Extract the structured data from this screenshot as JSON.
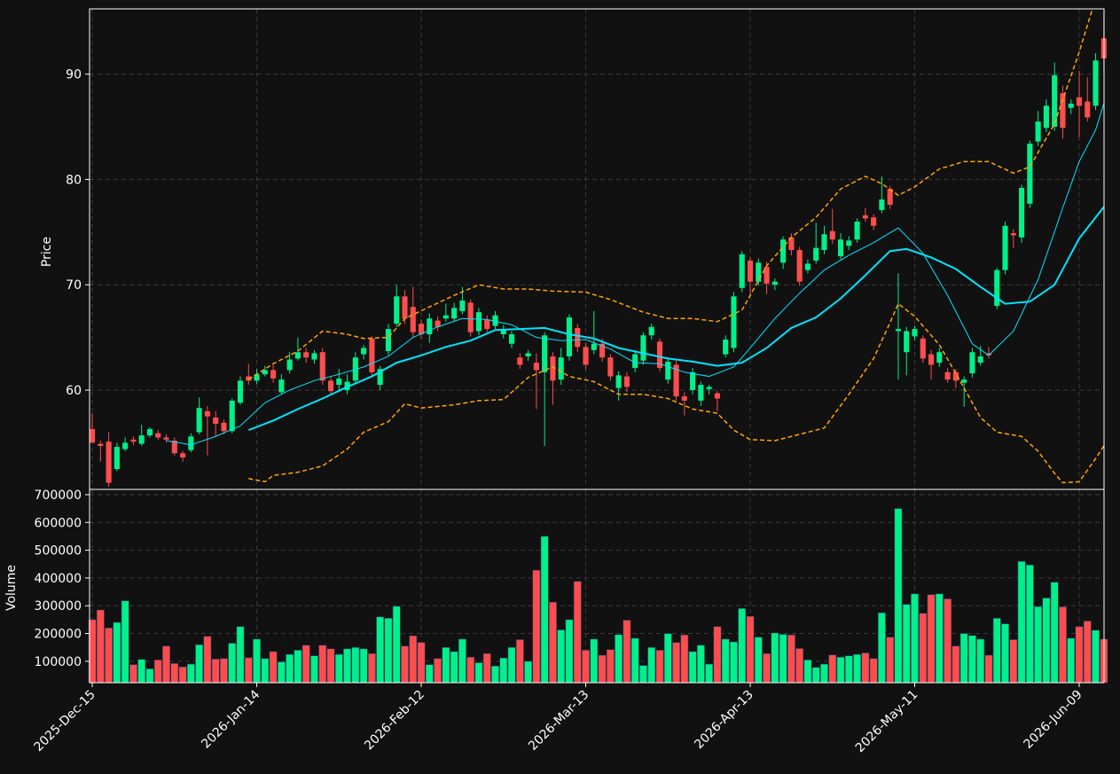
{
  "chart_data": {
    "type": "candlestick",
    "categories": [
      "2025-Dec-15",
      null,
      null,
      null,
      null,
      null,
      null,
      null,
      null,
      null,
      null,
      null,
      null,
      null,
      null,
      null,
      null,
      null,
      null,
      null,
      "2026-Jan-14",
      null,
      null,
      null,
      null,
      null,
      null,
      null,
      null,
      null,
      null,
      null,
      null,
      null,
      null,
      null,
      null,
      null,
      null,
      null,
      "2026-Feb-12",
      null,
      null,
      null,
      null,
      null,
      null,
      null,
      null,
      null,
      null,
      null,
      null,
      null,
      null,
      null,
      null,
      null,
      null,
      null,
      "2026-Mar-13",
      null,
      null,
      null,
      null,
      null,
      null,
      null,
      null,
      null,
      null,
      null,
      null,
      null,
      null,
      null,
      null,
      null,
      null,
      null,
      "2026-Apr-13",
      null,
      null,
      null,
      null,
      null,
      null,
      null,
      null,
      null,
      null,
      null,
      null,
      null,
      null,
      null,
      null,
      null,
      null,
      null,
      "2026-May-11",
      null,
      null,
      null,
      null,
      null,
      null,
      null,
      null,
      null,
      null,
      null,
      null,
      null,
      null,
      null,
      null,
      null,
      null,
      null,
      "2026-Jun-09",
      null,
      null,
      null
    ],
    "open": [
      56.3,
      54.9,
      55.1,
      52.5,
      54.4,
      55.3,
      54.9,
      55.7,
      55.9,
      55.5,
      55.2,
      54.0,
      54.3,
      56.0,
      58.0,
      57.4,
      56.9,
      56.1,
      58.8,
      61.3,
      60.9,
      61.5,
      61.9,
      59.8,
      61.9,
      63.0,
      63.6,
      62.9,
      63.6,
      60.9,
      60.5,
      60.0,
      60.9,
      63.4,
      64.9,
      60.5,
      63.7,
      66.3,
      68.9,
      67.9,
      66.3,
      65.3,
      66.6,
      66.8,
      66.8,
      67.5,
      68.3,
      65.6,
      66.7,
      66.1,
      65.3,
      64.4,
      63.1,
      63.2,
      62.6,
      61.7,
      63.2,
      61.0,
      63.2,
      65.9,
      64.1,
      63.8,
      64.4,
      63.1,
      60.2,
      61.3,
      62.1,
      62.8,
      65.2,
      64.6,
      61.0,
      62.4,
      59.4,
      60.0,
      59.0,
      60.1,
      59.7,
      63.4,
      64.0,
      69.7,
      72.3,
      70.3,
      71.7,
      70.0,
      72.1,
      74.5,
      73.3,
      71.4,
      72.3,
      73.3,
      75.1,
      72.7,
      73.7,
      74.3,
      76.6,
      76.4,
      77.1,
      79.1,
      65.6,
      63.6,
      65.1,
      64.9,
      63.4,
      62.6,
      61.7,
      61.7,
      60.7,
      61.6,
      62.6,
      63.5,
      68.0,
      71.4,
      74.9,
      74.5,
      77.7,
      83.6,
      84.9,
      85.0,
      88.2,
      86.8,
      87.8,
      87.4,
      87.0,
      93.4
    ],
    "high": [
      57.8,
      55.2,
      56.0,
      55.0,
      55.5,
      55.6,
      56.7,
      56.5,
      56.2,
      55.8,
      55.5,
      54.2,
      55.9,
      59.3,
      58.5,
      58.0,
      57.2,
      59.2,
      61.3,
      62.5,
      62.0,
      62.3,
      62.4,
      61.5,
      63.6,
      65.0,
      64.0,
      63.8,
      64.0,
      61.3,
      62.0,
      61.5,
      63.6,
      64.3,
      65.1,
      62.3,
      66.3,
      70.0,
      69.5,
      69.8,
      66.7,
      67.3,
      67.0,
      68.2,
      68.3,
      69.8,
      68.6,
      67.8,
      67.1,
      67.5,
      66.2,
      65.6,
      63.5,
      63.8,
      63.5,
      65.5,
      63.6,
      64.0,
      67.2,
      66.3,
      64.5,
      67.5,
      64.9,
      63.4,
      61.8,
      61.7,
      63.8,
      65.5,
      66.3,
      64.9,
      63.1,
      62.8,
      59.8,
      62.1,
      60.8,
      60.5,
      59.9,
      65.2,
      69.3,
      73.2,
      72.6,
      72.5,
      72.2,
      70.6,
      74.6,
      74.9,
      73.6,
      72.4,
      75.9,
      75.6,
      77.2,
      74.9,
      74.6,
      76.3,
      77.3,
      76.7,
      80.3,
      79.4,
      71.1,
      66.0,
      66.1,
      65.2,
      63.8,
      64.0,
      62.1,
      62.0,
      61.3,
      64.0,
      64.2,
      64.1,
      71.6,
      76.0,
      75.3,
      79.5,
      83.7,
      86.5,
      87.6,
      91.1,
      88.9,
      87.6,
      90.3,
      89.7,
      92.0,
      95.8
    ],
    "low": [
      55.0,
      53.2,
      50.8,
      52.3,
      54.2,
      54.8,
      54.7,
      55.5,
      55.3,
      55.0,
      53.8,
      53.2,
      54.1,
      55.8,
      53.8,
      55.6,
      55.8,
      55.9,
      58.6,
      60.5,
      60.6,
      61.3,
      60.7,
      59.6,
      61.6,
      62.8,
      62.6,
      62.5,
      60.5,
      59.6,
      59.8,
      59.6,
      60.6,
      62.9,
      61.3,
      60.0,
      63.3,
      66.0,
      66.3,
      65.0,
      64.9,
      64.5,
      65.6,
      66.5,
      66.5,
      67.2,
      65.1,
      65.2,
      65.5,
      65.8,
      64.9,
      64.0,
      62.0,
      62.8,
      58.2,
      54.7,
      58.6,
      60.5,
      62.8,
      63.6,
      62.0,
      63.4,
      62.7,
      60.9,
      59.0,
      59.8,
      61.7,
      62.4,
      64.8,
      61.8,
      60.6,
      59.0,
      57.6,
      59.6,
      58.5,
      59.6,
      58.0,
      63.1,
      63.6,
      69.3,
      68.9,
      69.9,
      69.1,
      69.5,
      71.5,
      72.8,
      69.9,
      71.1,
      72.0,
      72.9,
      73.9,
      72.4,
      73.3,
      74.0,
      76.0,
      75.2,
      76.8,
      77.2,
      61.0,
      61.4,
      64.7,
      62.6,
      61.0,
      62.2,
      60.7,
      60.2,
      58.4,
      61.2,
      62.3,
      63.0,
      67.7,
      71.0,
      73.5,
      74.0,
      77.3,
      83.2,
      84.5,
      84.6,
      83.9,
      86.2,
      84.0,
      85.5,
      86.6,
      90.3
    ],
    "close": [
      55.0,
      54.7,
      51.2,
      54.6,
      55.0,
      55.1,
      55.7,
      56.3,
      55.5,
      55.3,
      54.0,
      53.6,
      55.6,
      58.3,
      57.5,
      56.8,
      56.1,
      59.0,
      60.9,
      60.9,
      61.5,
      61.9,
      61.1,
      61.0,
      62.9,
      63.6,
      63.1,
      63.5,
      60.9,
      59.9,
      61.1,
      60.8,
      63.1,
      64.0,
      61.7,
      62.0,
      65.8,
      68.9,
      66.8,
      65.5,
      65.3,
      66.8,
      66.0,
      67.1,
      67.8,
      68.5,
      65.5,
      67.4,
      65.8,
      67.1,
      65.8,
      65.3,
      62.4,
      63.5,
      61.9,
      65.2,
      60.9,
      63.1,
      66.9,
      64.1,
      62.4,
      64.4,
      63.1,
      61.3,
      61.4,
      60.3,
      63.4,
      65.2,
      66.0,
      62.1,
      62.7,
      59.4,
      59.0,
      61.7,
      60.5,
      60.3,
      59.2,
      64.8,
      68.9,
      72.9,
      70.3,
      72.1,
      70.1,
      70.3,
      74.3,
      73.3,
      70.3,
      72.0,
      73.5,
      74.8,
      74.3,
      74.3,
      74.2,
      76.0,
      76.3,
      75.6,
      78.1,
      77.6,
      65.8,
      65.6,
      65.8,
      63.0,
      62.4,
      63.6,
      61.0,
      60.9,
      61.0,
      63.6,
      63.2,
      63.3,
      71.4,
      75.6,
      74.7,
      79.2,
      83.4,
      85.5,
      87.0,
      89.9,
      84.9,
      87.2,
      87.0,
      85.9,
      91.3,
      91.5
    ],
    "up_color": "#00f08a",
    "down_color": "#ff4d4d",
    "ylabel": "Price",
    "ylim": [
      50.57,
      96.2
    ],
    "yticks": [
      60,
      70,
      80,
      90
    ],
    "grid": true,
    "lines": [
      {
        "color": "#00e5ff",
        "width": 1,
        "x": [
          9,
          12,
          15,
          18,
          21,
          24,
          27,
          30,
          33,
          36,
          39,
          42,
          45,
          48,
          51,
          54,
          57,
          60,
          63,
          66,
          69,
          72,
          75,
          78,
          80,
          83,
          86,
          89,
          92,
          95,
          98,
          101,
          104,
          107,
          109,
          112,
          115,
          118,
          120,
          122,
          123
        ],
        "values": [
          55.2,
          54.8,
          55.6,
          56.6,
          58.8,
          60.0,
          60.9,
          61.5,
          62.2,
          63.2,
          65.0,
          66.0,
          66.8,
          66.7,
          66.2,
          65.0,
          64.7,
          64.8,
          63.9,
          62.6,
          62.5,
          61.7,
          61.3,
          62.2,
          64.0,
          66.8,
          69.2,
          71.4,
          72.8,
          74.0,
          75.4,
          73.0,
          69.0,
          64.4,
          63.3,
          65.6,
          70.5,
          77.3,
          81.7,
          84.7,
          87.2
        ]
      },
      {
        "color": "#00e5ff",
        "width": 2,
        "x": [
          19,
          22,
          25,
          28,
          31,
          34,
          37,
          40,
          43,
          46,
          49,
          52,
          55,
          58,
          61,
          64,
          67,
          70,
          73,
          76,
          79,
          82,
          85,
          88,
          91,
          94,
          97,
          99,
          102,
          105,
          108,
          111,
          114,
          117,
          120,
          123
        ],
        "values": [
          56.2,
          57.1,
          58.2,
          59.2,
          60.3,
          61.3,
          62.6,
          63.3,
          64.1,
          64.7,
          65.7,
          65.8,
          65.9,
          65.3,
          64.9,
          64.0,
          63.5,
          63.0,
          62.7,
          62.3,
          62.6,
          64.0,
          65.9,
          66.9,
          68.7,
          70.9,
          73.2,
          73.4,
          72.6,
          71.5,
          69.8,
          68.2,
          68.4,
          70.0,
          74.4,
          77.4
        ]
      },
      {
        "color": "#ffa500",
        "width": 1.5,
        "dash": true,
        "x": [
          19,
          22,
          25,
          28,
          31,
          33,
          36,
          38,
          41,
          44,
          47,
          50,
          53,
          56,
          60,
          63,
          67,
          70,
          73,
          76,
          79,
          82,
          85,
          88,
          91,
          94,
          96,
          98,
          100,
          103,
          106,
          109,
          112,
          114,
          117,
          120,
          122
        ],
        "values": [
          61.0,
          62.5,
          63.7,
          65.6,
          65.3,
          64.9,
          65.0,
          66.8,
          67.9,
          69.0,
          70.0,
          69.6,
          69.6,
          69.4,
          69.3,
          68.6,
          67.4,
          66.8,
          66.8,
          66.5,
          67.6,
          71.8,
          74.5,
          76.4,
          79.1,
          80.3,
          79.6,
          78.5,
          79.3,
          81.0,
          81.7,
          81.7,
          80.6,
          81.2,
          85.3,
          92.1,
          97.2
        ]
      },
      {
        "color": "#ffa500",
        "width": 1.5,
        "dash": true,
        "x": [
          19,
          21,
          22,
          25,
          28,
          31,
          33,
          36,
          38,
          40,
          44,
          47,
          50,
          53,
          56,
          58,
          61,
          64,
          67,
          70,
          73,
          76,
          78,
          80,
          83,
          86,
          89,
          92,
          95,
          97,
          98,
          100,
          103,
          106,
          108,
          110,
          113,
          115,
          117,
          118,
          120,
          122,
          123
        ],
        "values": [
          51.6,
          51.3,
          51.9,
          52.2,
          52.8,
          54.4,
          56.0,
          57.0,
          58.7,
          58.3,
          58.6,
          59.0,
          59.1,
          61.2,
          62.2,
          61.3,
          60.8,
          59.6,
          59.6,
          59.2,
          58.2,
          57.8,
          56.2,
          55.3,
          55.2,
          55.8,
          56.4,
          59.6,
          63.0,
          66.4,
          68.2,
          67.0,
          64.3,
          60.2,
          57.4,
          56.0,
          55.6,
          54.2,
          52.1,
          51.2,
          51.3,
          53.5,
          54.7
        ]
      }
    ],
    "volume": {
      "ylabel": "Volume",
      "ylim": [
        23000,
        719000
      ],
      "yticks": [
        100000,
        200000,
        300000,
        400000,
        500000,
        600000,
        700000
      ],
      "values": [
        250000,
        285000,
        220000,
        240000,
        318000,
        88000,
        107000,
        73000,
        105000,
        155000,
        92000,
        80000,
        90000,
        160000,
        190000,
        108000,
        110000,
        165000,
        225000,
        113000,
        180000,
        110000,
        135000,
        98000,
        125000,
        140000,
        158000,
        120000,
        158000,
        145000,
        125000,
        145000,
        150000,
        145000,
        128000,
        260000,
        255000,
        298000,
        155000,
        192000,
        168000,
        88000,
        110000,
        150000,
        135000,
        180000,
        115000,
        95000,
        128000,
        83000,
        112000,
        150000,
        178000,
        100000,
        428000,
        550000,
        313000,
        213000,
        250000,
        388000,
        140000,
        180000,
        122000,
        142000,
        196000,
        248000,
        183000,
        85000,
        150000,
        140000,
        200000,
        168000,
        195000,
        135000,
        158000,
        90000,
        225000,
        180000,
        170000,
        290000,
        262000,
        187000,
        128000,
        202000,
        197000,
        195000,
        146000,
        105000,
        78000,
        90000,
        123000,
        115000,
        120000,
        125000,
        130000,
        110000,
        275000,
        187000,
        650000,
        305000,
        343000,
        273000,
        340000,
        343000,
        325000,
        155000,
        200000,
        193000,
        180000,
        122000,
        255000,
        235000,
        178000,
        460000,
        447000,
        297000,
        328000,
        385000,
        296000,
        183000,
        225000,
        245000,
        212000,
        180000
      ]
    }
  }
}
